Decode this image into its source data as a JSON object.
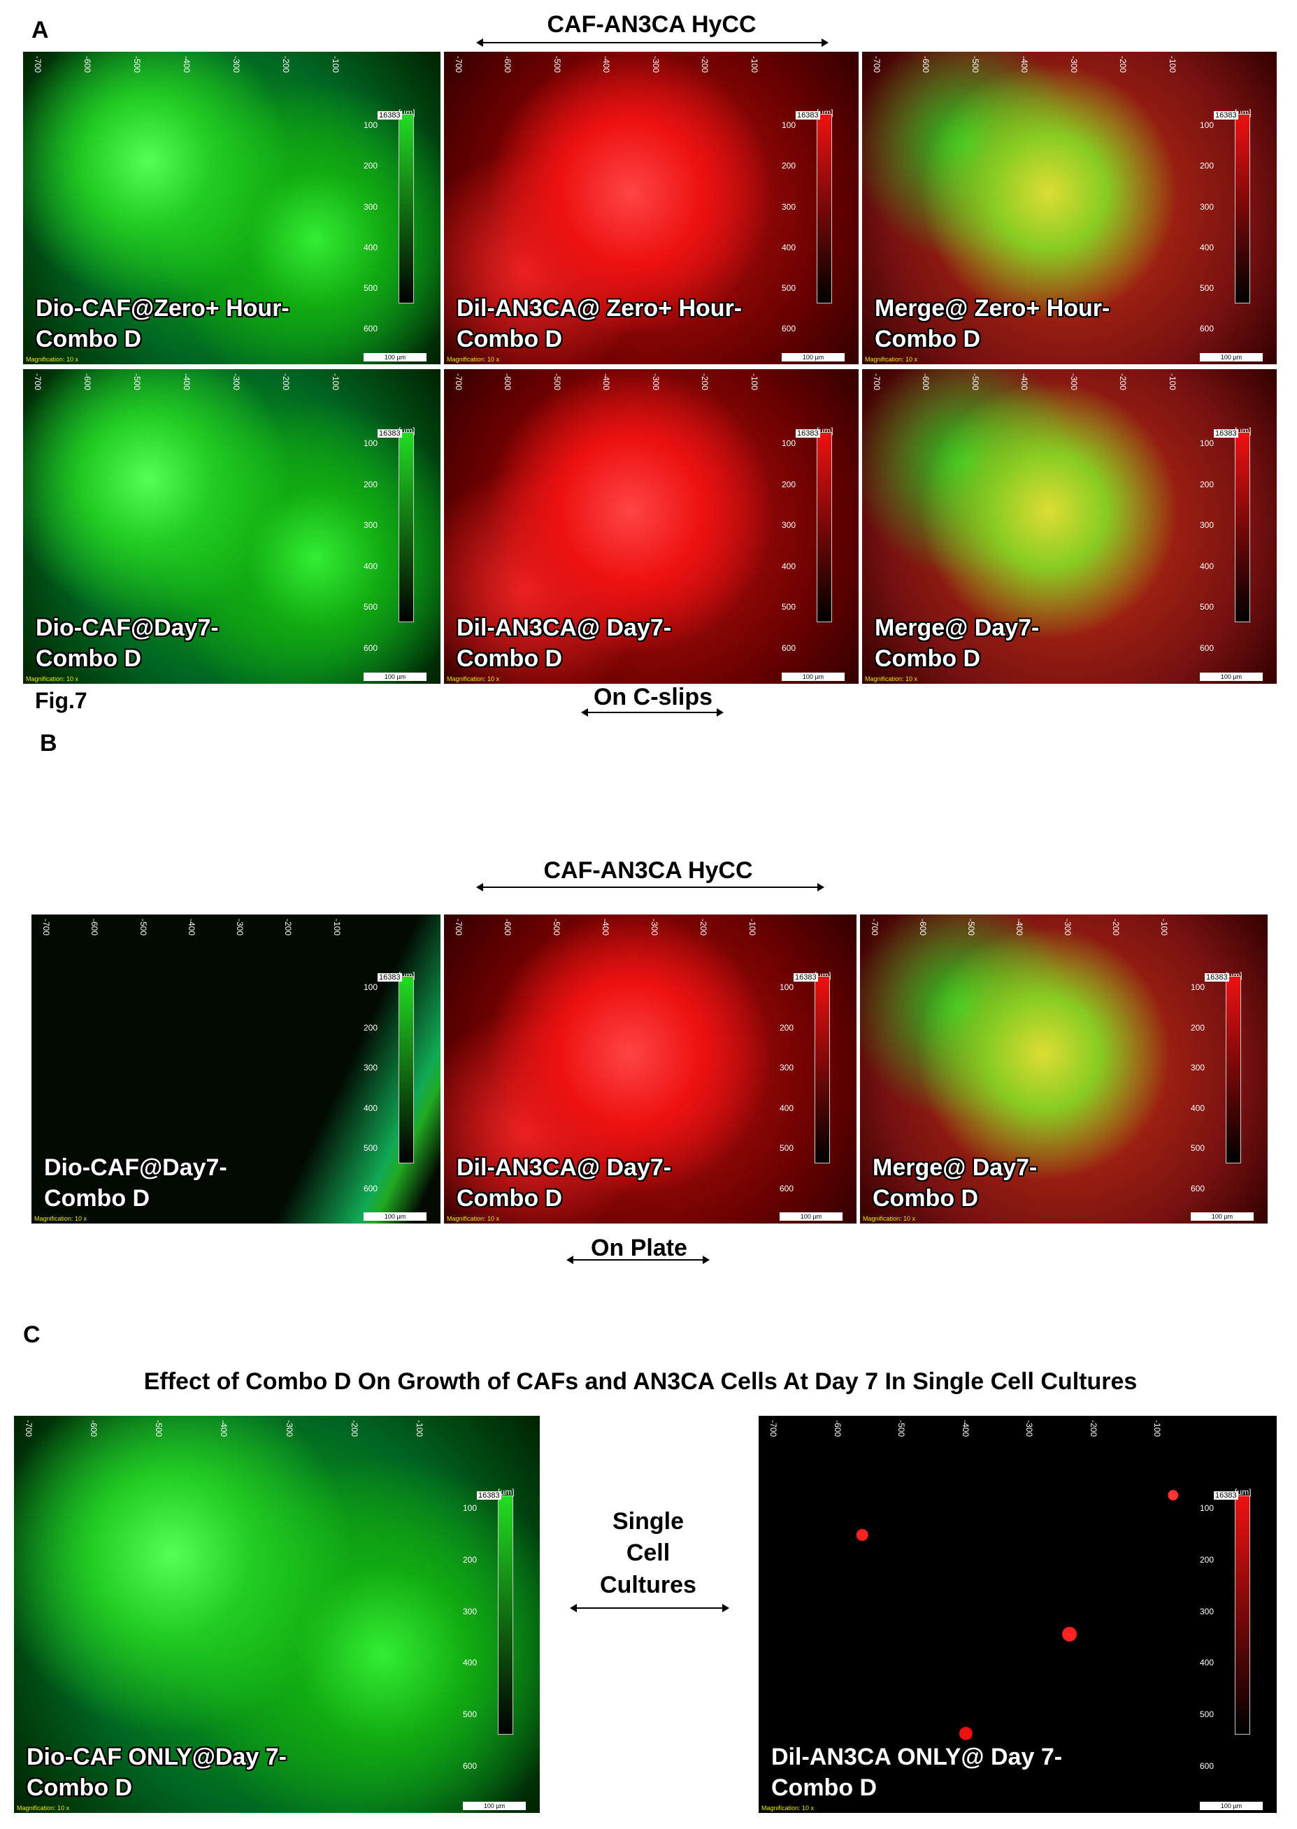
{
  "panel_a": {
    "letter": "A",
    "header": "CAF-AN3CA HyCC",
    "footer": "On C-slips",
    "figure_label": "Fig.7",
    "images": [
      {
        "channel": "green",
        "label": [
          "Dio-CAF@Zero+  Hour-",
          "Combo D"
        ]
      },
      {
        "channel": "red",
        "label": [
          "Dil-AN3CA@ Zero+  Hour-",
          "Combo D"
        ]
      },
      {
        "channel": "merge",
        "label": [
          "Merge@ Zero+  Hour-",
          "Combo D"
        ]
      },
      {
        "channel": "green",
        "label": [
          "Dio-CAF@Day7-",
          "Combo D"
        ]
      },
      {
        "channel": "red",
        "label": [
          "Dil-AN3CA@ Day7-",
          "Combo D"
        ]
      },
      {
        "channel": "merge",
        "label": [
          "Merge@ Day7-",
          "Combo D"
        ]
      }
    ]
  },
  "panel_b": {
    "letter": "B",
    "header": "CAF-AN3CA HyCC",
    "footer": "On Plate",
    "images": [
      {
        "channel": "dark",
        "label": [
          "Dio-CAF@Day7-",
          "Combo D"
        ]
      },
      {
        "channel": "red",
        "label": [
          "Dil-AN3CA@ Day7-",
          "Combo D"
        ]
      },
      {
        "channel": "merge",
        "label": [
          "Merge@ Day7-",
          "Combo D"
        ]
      }
    ]
  },
  "panel_c": {
    "letter": "C",
    "title": "Effect of Combo D On Growth of CAFs and AN3CA Cells At Day 7 In Single Cell Cultures",
    "middle": [
      "Single",
      "Cell",
      "Cultures"
    ],
    "images": [
      {
        "channel": "green",
        "label": [
          "Dio-CAF ONLY@Day 7-",
          "Combo D"
        ]
      },
      {
        "channel": "sparse",
        "label": [
          "Dil-AN3CA ONLY@ Day 7-",
          "Combo D"
        ]
      }
    ]
  },
  "scale": {
    "top": [
      "-700",
      "-600",
      "-500",
      "-400",
      "-300",
      "-200",
      "-100"
    ],
    "side": [
      "100",
      "200",
      "300",
      "400",
      "500",
      "600"
    ],
    "unit": "[µm]",
    "max": "16383",
    "bar": "100 µm",
    "magnification": "Magnification: 10 x"
  }
}
